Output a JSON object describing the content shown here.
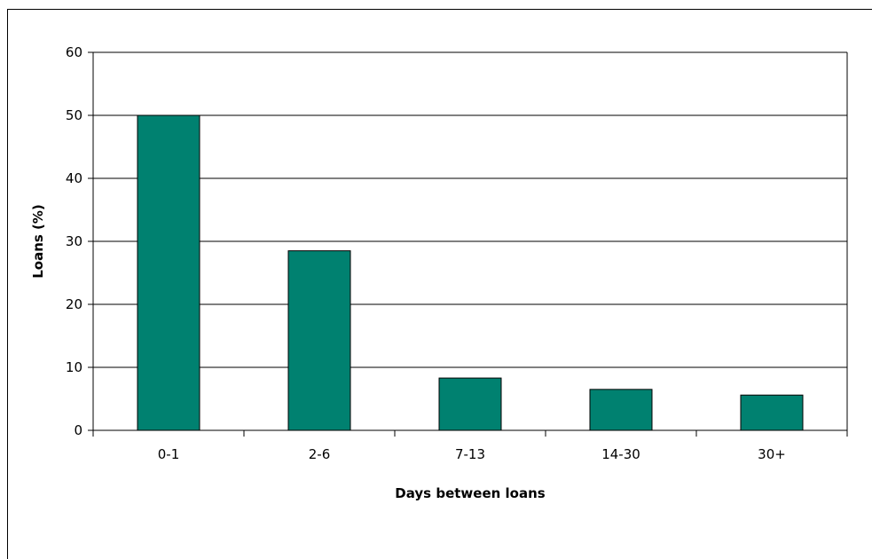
{
  "chart_data": {
    "type": "bar",
    "title": "",
    "xlabel": "Days between loans",
    "ylabel": "Loans (%)",
    "categories": [
      "0-1",
      "2-6",
      "7-13",
      "14-30",
      "30+"
    ],
    "values": [
      50,
      28.5,
      8.3,
      6.5,
      5.6
    ],
    "ylim": [
      0,
      60
    ],
    "yticks": [
      0,
      10,
      20,
      30,
      40,
      50,
      60
    ],
    "grid": true,
    "legend": "none",
    "bar_color": "#008170"
  }
}
